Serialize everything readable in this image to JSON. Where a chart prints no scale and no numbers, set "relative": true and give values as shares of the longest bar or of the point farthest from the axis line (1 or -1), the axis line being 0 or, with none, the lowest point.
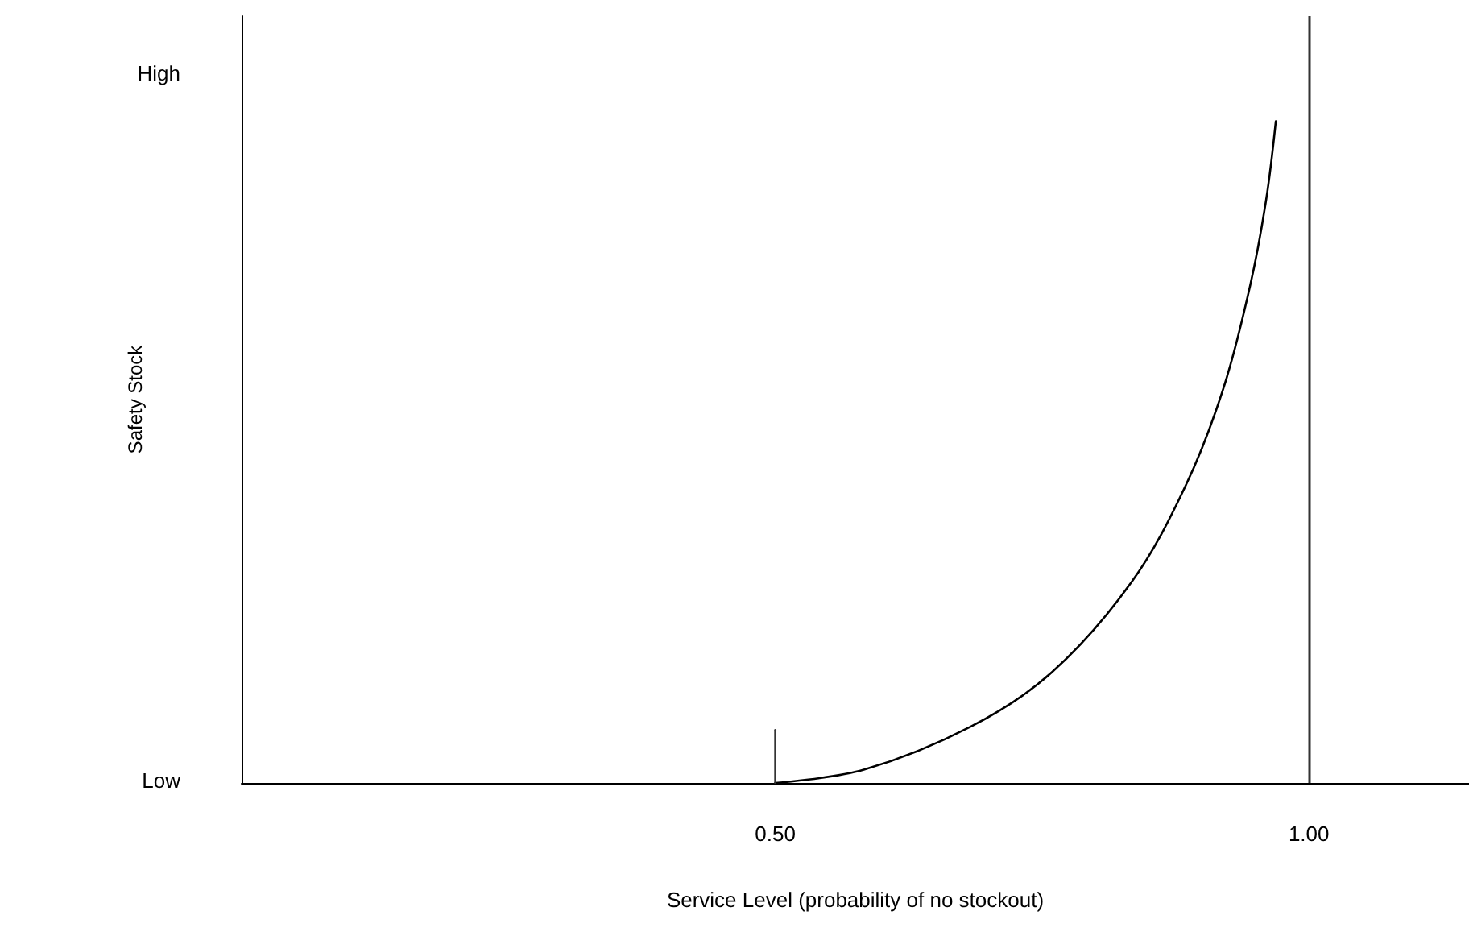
{
  "chart_data": {
    "type": "line",
    "xlabel": "Service Level (probability of no stockout)",
    "ylabel": "Safety Stock",
    "relative": true,
    "annotations": [
      "Low",
      "High"
    ],
    "xlim": [
      0,
      1.15
    ],
    "xticks": [
      {
        "value": 0.5,
        "label": "0.50"
      },
      {
        "value": 1.0,
        "label": "1.00"
      }
    ],
    "x": [
      0.5,
      0.583,
      0.683,
      0.759,
      0.834,
      0.885,
      0.92,
      0.945,
      0.96,
      0.969
    ],
    "series": [
      {
        "color": "#000000",
        "values": [
          0,
          0.02,
          0.085,
          0.167,
          0.304,
          0.451,
          0.597,
          0.752,
          0.882,
          1
        ]
      },
      {
        "color": "#333333",
        "x": [
          0.5,
          0.5
        ],
        "values": [
          0,
          0.08
        ]
      }
    ],
    "ref_lines": [
      {
        "axis": "x",
        "value": 1.0,
        "color": "#333333"
      }
    ],
    "grid": false,
    "marker": "none",
    "line_style": "solid"
  }
}
